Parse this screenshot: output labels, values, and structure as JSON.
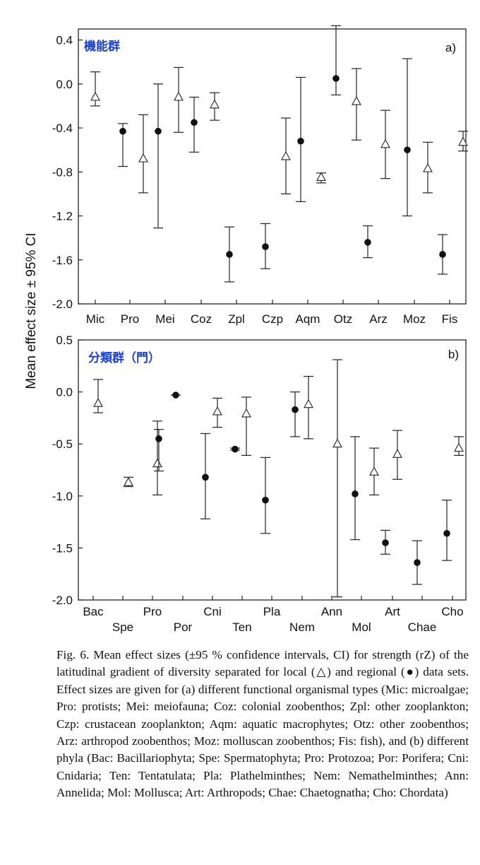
{
  "y_axis_label": "Mean effect size ± 95% CI",
  "caption": "Fig. 6. Mean effect sizes (±95 % confidence intervals, CI) for strength (rZ) of the latitudinal gradient of diversity separated for local (△) and regional (●) data sets. Effect sizes are given for (a) different functional organismal types (Mic: microalgae; Pro: protists; Mei: meiofauna; Coz: colonial zoobenthos; Zpl: other zooplankton; Czp: crustacean zooplankton; Aqm: aquatic macrophytes; Otz: other zoobenthos; Arz: arthropod zoobenthos; Moz: molluscan zoobenthos; Fis: fish), and (b) different phyla (Bac: Bacillariophyta; Spe: Spermatophyta; Pro: Protozoa; Por: Porifera; Cni: Cnidaria; Ten: Tentatulata; Pla: Plathelminthes; Nem: Nemathelminthes; Ann: Annelida; Mol: Mollusca; Art: Arthropods; Chae: Chaetognatha; Cho: Chordata)",
  "chart_data": [
    {
      "type": "scatter",
      "subtype": "error-bar",
      "panel_label": "a)",
      "title": "機能群",
      "ylim": [
        -2.0,
        0.5
      ],
      "y_ticks": [
        "0.4",
        "0.0",
        "-0.4",
        "-0.8",
        "-1.2",
        "-1.6",
        "-2.0"
      ],
      "y_tick_values": [
        0.4,
        0.0,
        -0.4,
        -0.8,
        -1.2,
        -1.6,
        -2.0
      ],
      "categories": [
        "Mic",
        "Pro",
        "Mei",
        "Coz",
        "Zpl",
        "Czp",
        "Aqm",
        "Otz",
        "Arz",
        "Moz",
        "Fis"
      ],
      "series": [
        {
          "name": "local (△)",
          "marker": "triangle",
          "points": [
            {
              "category": "Mic",
              "mean": -0.12,
              "lower": -0.2,
              "upper": 0.11
            },
            {
              "category": "Pro",
              "mean": -0.68,
              "lower": -0.99,
              "upper": -0.28
            },
            {
              "category": "Mei",
              "mean": -0.12,
              "lower": -0.44,
              "upper": 0.15
            },
            {
              "category": "Coz",
              "mean": -0.19,
              "lower": -0.33,
              "upper": -0.08
            },
            {
              "category": "Czp",
              "mean": -0.66,
              "lower": -1.0,
              "upper": -0.31
            },
            {
              "category": "Aqm",
              "mean": -0.85,
              "lower": -0.9,
              "upper": -0.81
            },
            {
              "category": "Otz",
              "mean": -0.16,
              "lower": -0.51,
              "upper": 0.14
            },
            {
              "category": "Arz",
              "mean": -0.55,
              "lower": -0.86,
              "upper": -0.24
            },
            {
              "category": "Moz",
              "mean": -0.77,
              "lower": -0.99,
              "upper": -0.53
            },
            {
              "category": "Fis",
              "mean": -0.53,
              "lower": -0.61,
              "upper": -0.43
            }
          ]
        },
        {
          "name": "regional (●)",
          "marker": "circle",
          "points": [
            {
              "category": "Pro",
              "mean": -0.43,
              "lower": -0.75,
              "upper": -0.36
            },
            {
              "category": "Mei",
              "mean": -0.43,
              "lower": -1.31,
              "upper": 0.0
            },
            {
              "category": "Coz",
              "mean": -0.35,
              "lower": -0.62,
              "upper": -0.12
            },
            {
              "category": "Zpl",
              "mean": -1.55,
              "lower": -1.8,
              "upper": -1.3
            },
            {
              "category": "Czp",
              "mean": -1.48,
              "lower": -1.68,
              "upper": -1.27
            },
            {
              "category": "Aqm",
              "mean": -0.52,
              "lower": -1.07,
              "upper": 0.06
            },
            {
              "category": "Otz",
              "mean": 0.05,
              "lower": -0.1,
              "upper": 0.53
            },
            {
              "category": "Arz",
              "mean": -1.44,
              "lower": -1.58,
              "upper": -1.29
            },
            {
              "category": "Moz",
              "mean": -0.6,
              "lower": -1.2,
              "upper": 0.23
            },
            {
              "category": "Fis",
              "mean": -1.55,
              "lower": -1.73,
              "upper": -1.37
            }
          ]
        }
      ]
    },
    {
      "type": "scatter",
      "subtype": "error-bar",
      "panel_label": "b)",
      "title": "分類群（門）",
      "ylim": [
        -2.0,
        0.5
      ],
      "y_ticks": [
        "0.5",
        "0.0",
        "-0.5",
        "-1.0",
        "-1.5",
        "-2.0"
      ],
      "y_tick_values": [
        0.5,
        0.0,
        -0.5,
        -1.0,
        -1.5,
        -2.0
      ],
      "categories": [
        "Bac",
        "Spe",
        "Pro",
        "Por",
        "Cni",
        "Ten",
        "Pla",
        "Nem",
        "Ann",
        "Mol",
        "Art",
        "Chae",
        "Cho"
      ],
      "series": [
        {
          "name": "local (△)",
          "marker": "triangle",
          "points": [
            {
              "category": "Bac",
              "mean": -0.11,
              "lower": -0.2,
              "upper": 0.12
            },
            {
              "category": "Spe",
              "mean": -0.87,
              "lower": -0.91,
              "upper": -0.82
            },
            {
              "category": "Pro",
              "mean": -0.69,
              "lower": -0.99,
              "upper": -0.28
            },
            {
              "category": "Cni",
              "mean": -0.19,
              "lower": -0.34,
              "upper": -0.06
            },
            {
              "category": "Ten",
              "mean": -0.21,
              "lower": -0.61,
              "upper": -0.05
            },
            {
              "category": "Nem",
              "mean": -0.12,
              "lower": -0.45,
              "upper": 0.15
            },
            {
              "category": "Ann",
              "mean": -0.5,
              "lower": -1.97,
              "upper": 0.31
            },
            {
              "category": "Mol",
              "mean": -0.77,
              "lower": -0.99,
              "upper": -0.54
            },
            {
              "category": "Art",
              "mean": -0.6,
              "lower": -0.84,
              "upper": -0.37
            },
            {
              "category": "Cho",
              "mean": -0.54,
              "lower": -0.61,
              "upper": -0.43
            }
          ]
        },
        {
          "name": "regional (●)",
          "marker": "circle",
          "points": [
            {
              "category": "Pro",
              "mean": -0.45,
              "lower": -0.76,
              "upper": -0.36
            },
            {
              "category": "Por",
              "mean": -0.03,
              "lower": -0.03,
              "upper": -0.03
            },
            {
              "category": "Cni",
              "mean": -0.82,
              "lower": -1.22,
              "upper": -0.4
            },
            {
              "category": "Ten",
              "mean": -0.55,
              "lower": -0.56,
              "upper": -0.54
            },
            {
              "category": "Pla",
              "mean": -1.04,
              "lower": -1.36,
              "upper": -0.63
            },
            {
              "category": "Nem",
              "mean": -0.17,
              "lower": -0.43,
              "upper": 0.0
            },
            {
              "category": "Mol",
              "mean": -0.98,
              "lower": -1.42,
              "upper": -0.43
            },
            {
              "category": "Art",
              "mean": -1.45,
              "lower": -1.56,
              "upper": -1.33
            },
            {
              "category": "Chae",
              "mean": -1.64,
              "lower": -1.85,
              "upper": -1.43
            },
            {
              "category": "Cho",
              "mean": -1.36,
              "lower": -1.62,
              "upper": -1.04
            }
          ]
        }
      ]
    }
  ]
}
